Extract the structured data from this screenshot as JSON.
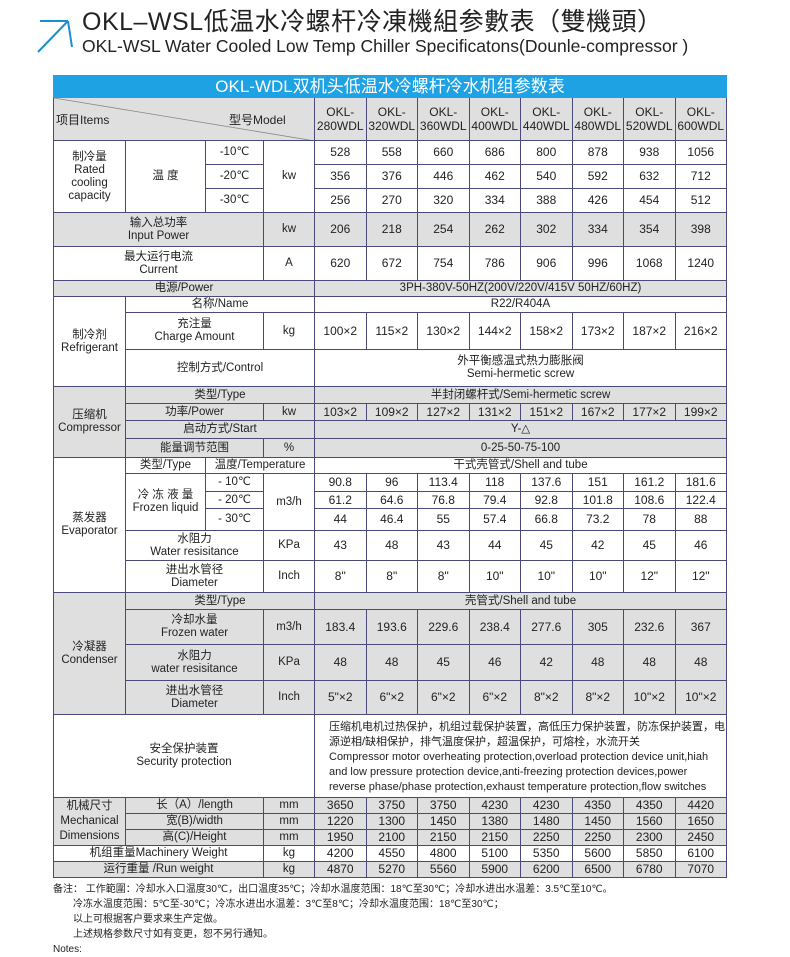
{
  "title_cn": "OKL–WSL低温水冷螺杆冷凍機組参數表（雙機頭）",
  "title_en": "OKL-WSL Water Cooled Low Temp Chiller Specificatons(Dounle-compressor )",
  "colors": {
    "accent": "#1ea2e4",
    "row_gray": "#dfdfdf",
    "border": "#4a4a7a"
  },
  "icons": {
    "title": "arrow-up-right-icon"
  },
  "table": {
    "title": "OKL-WDL双机头低温水冷螺杆冷水机组参数表",
    "header": {
      "items": "项目Items",
      "model": "型号Model",
      "models": [
        "OKL-\n280WDL",
        "OKL-\n320WDL",
        "OKL-\n360WDL",
        "OKL-\n400WDL",
        "OKL-\n440WDL",
        "OKL-\n480WDL",
        "OKL-\n520WDL",
        "OKL-\n600WDL"
      ]
    },
    "rated": {
      "label_cn": "制冷量",
      "label_en": "Rated cooling capacity",
      "temp": "温 度",
      "unit": "kw",
      "t1": "-10℃",
      "t2": "-20℃",
      "t3": "-30℃",
      "v1": [
        "528",
        "558",
        "660",
        "686",
        "800",
        "878",
        "938",
        "1056"
      ],
      "v2": [
        "356",
        "376",
        "446",
        "462",
        "540",
        "592",
        "632",
        "712"
      ],
      "v3": [
        "256",
        "270",
        "320",
        "334",
        "388",
        "426",
        "454",
        "512"
      ]
    },
    "input_power": {
      "cn": "输入总功率",
      "en": "Input Power",
      "unit": "kw",
      "values": [
        "206",
        "218",
        "254",
        "262",
        "302",
        "334",
        "354",
        "398"
      ]
    },
    "current": {
      "cn": "最大运行电流",
      "en": "Current",
      "unit": "A",
      "values": [
        "620",
        "672",
        "754",
        "786",
        "906",
        "996",
        "1068",
        "1240"
      ]
    },
    "power": {
      "label": "电源/Power",
      "value": "3PH-380V-50HZ(200V/220V/415V  50HZ/60HZ)"
    },
    "refrigerant": {
      "cn": "制冷剂",
      "en": "Refrigerant",
      "name_label": "名称/Name",
      "name_value": "R22/R404A",
      "charge_cn": "充注量",
      "charge_en": "Charge Amount",
      "charge_unit": "kg",
      "charge_values": [
        "100×2",
        "115×2",
        "130×2",
        "144×2",
        "158×2",
        "173×2",
        "187×2",
        "216×2"
      ],
      "control_label": "控制方式/Control",
      "control_cn": "外平衡感温式热力膨胀阀",
      "control_en": "Semi-hermetic screw"
    },
    "compressor": {
      "cn": "压缩机",
      "en": "Compressor",
      "type_label": "类型/Type",
      "type_value": "半封闭螺杆式/Semi-hermetic screw",
      "power_label": "功率/Power",
      "power_unit": "kw",
      "power_values": [
        "103×2",
        "109×2",
        "127×2",
        "131×2",
        "151×2",
        "167×2",
        "177×2",
        "199×2"
      ],
      "start_label": "启动方式/Start",
      "start_value": "Y-△",
      "energy_label": "能量调节范围",
      "energy_unit": "%",
      "energy_value": "0-25-50-75-100"
    },
    "evaporator": {
      "cn": "蒸发器",
      "en": "Evaporator",
      "type_label": "类型/Type",
      "temp_label": "温度/Temperature",
      "type_value": "干式壳管式/Shell and tube",
      "flow_cn": "冷 冻 液 量",
      "flow_en": "Frozen liquid",
      "flow_unit": "m3/h",
      "t1": "- 10℃",
      "t2": "- 20℃",
      "t3": "- 30℃",
      "v1": [
        "90.8",
        "96",
        "113.4",
        "118",
        "137.6",
        "151",
        "161.2",
        "181.6"
      ],
      "v2": [
        "61.2",
        "64.6",
        "76.8",
        "79.4",
        "92.8",
        "101.8",
        "108.6",
        "122.4"
      ],
      "v3": [
        "44",
        "46.4",
        "55",
        "57.4",
        "66.8",
        "73.2",
        "78",
        "88"
      ],
      "res_cn": "水阻力",
      "res_en": "Water resisitance",
      "res_unit": "KPa",
      "res_values": [
        "43",
        "48",
        "43",
        "44",
        "45",
        "42",
        "45",
        "46"
      ],
      "dia_cn": "进出水管径",
      "dia_en": "Diameter",
      "dia_unit": "Inch",
      "dia_values": [
        "8\"",
        "8\"",
        "8\"",
        "10\"",
        "10\"",
        "10\"",
        "12\"",
        "12\""
      ]
    },
    "condenser": {
      "cn": "冷凝器",
      "en": "Condenser",
      "type_label": "类型/Type",
      "type_value": "壳管式/Shell and tube",
      "flow_cn": "冷却水量",
      "flow_en": "Frozen water",
      "flow_unit": "m3/h",
      "flow_values": [
        "183.4",
        "193.6",
        "229.6",
        "238.4",
        "277.6",
        "305",
        "232.6",
        "367"
      ],
      "res_cn": "水阻力",
      "res_en": "water resisitance",
      "res_unit": "KPa",
      "res_values": [
        "48",
        "48",
        "45",
        "46",
        "42",
        "48",
        "48",
        "48"
      ],
      "dia_cn": "进出水管径",
      "dia_en": "Diameter",
      "dia_unit": "Inch",
      "dia_values": [
        "5\"×2",
        "6\"×2",
        "6\"×2",
        "6\"×2",
        "8\"×2",
        "8\"×2",
        "10\"×2",
        "10\"×2"
      ]
    },
    "security": {
      "cn": "安全保护装置",
      "en": "Security protection",
      "text_cn": "压缩机电机过热保护，机组过载保护装置，高低压力保护装置，防冻保护装置，电源逆相/缺相保护，排气温度保护，超温保护，可熔栓，水流开关",
      "text_en": "Compressor motor overheating protection,overload protection device unit,hiah and low pressure protection device,anti-freezing protection devices,power reverse phase/phase protection,exhaust temperature protection,flow switches"
    },
    "dimensions": {
      "cn": "机械尺寸",
      "en1": "Mechanical",
      "en2": "Dimensions",
      "length_label": "长（A）/length",
      "width_label": "宽(B)/width",
      "height_label": "高(C)/Height",
      "unit": "mm",
      "length": [
        "3650",
        "3750",
        "3750",
        "4230",
        "4230",
        "4350",
        "4350",
        "4420"
      ],
      "width": [
        "1220",
        "1300",
        "1450",
        "1380",
        "1480",
        "1450",
        "1560",
        "1650"
      ],
      "height": [
        "1950",
        "2100",
        "2150",
        "2150",
        "2250",
        "2250",
        "2300",
        "2450"
      ]
    },
    "machinery_weight": {
      "label": "机组重量Machinery Weight",
      "unit": "kg",
      "values": [
        "4200",
        "4550",
        "4800",
        "5100",
        "5350",
        "5600",
        "5850",
        "6100"
      ]
    },
    "run_weight": {
      "label": "运行重量 /Run weight",
      "unit": "kg",
      "values": [
        "4870",
        "5270",
        "5560",
        "5900",
        "6200",
        "6500",
        "6780",
        "7070"
      ]
    }
  },
  "notes": {
    "line1": "备注：  工作範圍：冷却水入口温度30℃，出口温度35℃；冷却水温度范围：18℃至30℃；冷却水进出水温差：3.5℃至10℃。",
    "line2": "冷冻水温度范围：5℃至-30℃；冷冻水进出水温差：3℃至8℃；冷却水温度范围：18℃至30℃；",
    "line3": "以上可根据客户要求来生产定做。",
    "line4": "上述规格参数尺寸如有变更，恕不另行通知。",
    "line5": "Notes:"
  }
}
